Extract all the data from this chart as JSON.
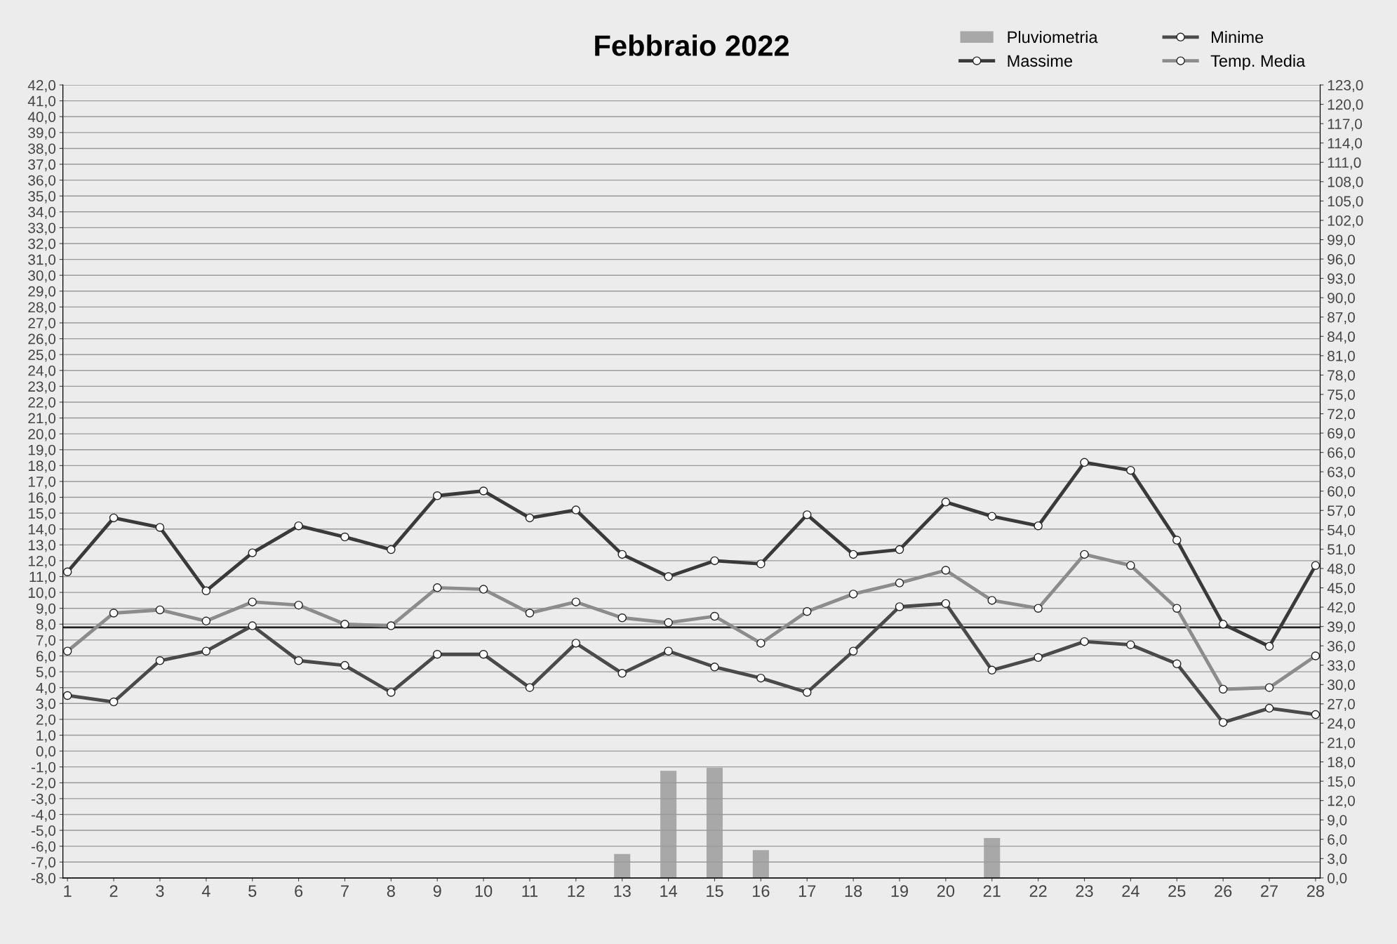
{
  "chart_data": {
    "type": "line",
    "title": "Febbraio 2022",
    "categories": [
      "1",
      "2",
      "3",
      "4",
      "5",
      "6",
      "7",
      "8",
      "9",
      "10",
      "11",
      "12",
      "13",
      "14",
      "15",
      "16",
      "17",
      "18",
      "19",
      "20",
      "21",
      "22",
      "23",
      "24",
      "25",
      "26",
      "27",
      "28"
    ],
    "series": [
      {
        "name": "Pluviometria",
        "type": "bar",
        "axis": "y2",
        "color": "#a8a8a8",
        "values": [
          0,
          0,
          0,
          0,
          0,
          0,
          null,
          0,
          0,
          0,
          0,
          0,
          3.7,
          16.6,
          17.1,
          4.3,
          0,
          0,
          0,
          0,
          6.2,
          0,
          0,
          0,
          0,
          null,
          0,
          0
        ]
      },
      {
        "name": "Massime",
        "color": "#3a3a3a",
        "marker": "circle",
        "values": [
          11.3,
          14.7,
          14.1,
          10.1,
          12.5,
          14.2,
          13.5,
          12.7,
          16.1,
          16.4,
          14.7,
          15.2,
          12.4,
          11.0,
          12.0,
          11.8,
          14.9,
          12.4,
          12.7,
          15.7,
          14.8,
          14.2,
          18.2,
          17.7,
          13.3,
          8.0,
          6.6,
          11.7
        ]
      },
      {
        "name": "Minime",
        "color": "#4a4a4a",
        "marker": "circle",
        "values": [
          3.5,
          3.1,
          5.7,
          6.3,
          7.9,
          5.7,
          5.4,
          3.7,
          6.1,
          6.1,
          4.0,
          6.8,
          4.9,
          6.3,
          5.3,
          4.6,
          3.7,
          6.3,
          9.1,
          9.3,
          5.1,
          5.9,
          6.9,
          6.7,
          5.5,
          1.8,
          2.7,
          2.3
        ]
      },
      {
        "name": "Temp. Media",
        "color": "#8c8c8c",
        "marker": "circle",
        "values": [
          6.3,
          8.7,
          8.9,
          8.2,
          9.4,
          9.2,
          8.0,
          7.9,
          10.3,
          10.2,
          8.7,
          9.4,
          8.4,
          8.1,
          8.5,
          6.8,
          8.8,
          9.9,
          10.6,
          11.4,
          9.5,
          9.0,
          12.4,
          11.7,
          9.0,
          3.9,
          4.0,
          6.0
        ]
      }
    ],
    "ylim": [
      -8,
      42
    ],
    "yticks": [
      {
        "value": -8,
        "label": "-8,0"
      },
      {
        "value": -7,
        "label": "-7,0"
      },
      {
        "value": -6,
        "label": "-6,0"
      },
      {
        "value": -5,
        "label": "-5,0"
      },
      {
        "value": -4,
        "label": "-4,0"
      },
      {
        "value": -3,
        "label": "-3,0"
      },
      {
        "value": -2,
        "label": "-2,0"
      },
      {
        "value": -1,
        "label": "-1,0"
      },
      {
        "value": 0,
        "label": "0,0"
      },
      {
        "value": 1,
        "label": "1,0"
      },
      {
        "value": 2,
        "label": "2,0"
      },
      {
        "value": 3,
        "label": "3,0"
      },
      {
        "value": 4,
        "label": "4,0"
      },
      {
        "value": 5,
        "label": "5,0"
      },
      {
        "value": 6,
        "label": "6,0"
      },
      {
        "value": 7,
        "label": "7,0"
      },
      {
        "value": 8,
        "label": "8,0"
      },
      {
        "value": 9,
        "label": "9,0"
      },
      {
        "value": 10,
        "label": "10,0"
      },
      {
        "value": 11,
        "label": "11,0"
      },
      {
        "value": 12,
        "label": "12,0"
      },
      {
        "value": 13,
        "label": "13,0"
      },
      {
        "value": 14,
        "label": "14,0"
      },
      {
        "value": 15,
        "label": "15,0"
      },
      {
        "value": 16,
        "label": "16,0"
      },
      {
        "value": 17,
        "label": "17,0"
      },
      {
        "value": 18,
        "label": "18,0"
      },
      {
        "value": 19,
        "label": "19,0"
      },
      {
        "value": 20,
        "label": "20,0"
      },
      {
        "value": 21,
        "label": "21,0"
      },
      {
        "value": 22,
        "label": "22,0"
      },
      {
        "value": 23,
        "label": "23,0"
      },
      {
        "value": 24,
        "label": "24,0"
      },
      {
        "value": 25,
        "label": "25,0"
      },
      {
        "value": 26,
        "label": "26,0"
      },
      {
        "value": 27,
        "label": "27,0"
      },
      {
        "value": 28,
        "label": "28,0"
      },
      {
        "value": 29,
        "label": "29,0"
      },
      {
        "value": 30,
        "label": "30,0"
      },
      {
        "value": 31,
        "label": "31,0"
      },
      {
        "value": 32,
        "label": "32,0"
      },
      {
        "value": 33,
        "label": "33,0"
      },
      {
        "value": 34,
        "label": "34,0"
      },
      {
        "value": 35,
        "label": "35,0"
      },
      {
        "value": 36,
        "label": "36,0"
      },
      {
        "value": 37,
        "label": "37,0"
      },
      {
        "value": 38,
        "label": "38,0"
      },
      {
        "value": 39,
        "label": "39,0"
      },
      {
        "value": 40,
        "label": "40,0"
      },
      {
        "value": 41,
        "label": "41,0"
      },
      {
        "value": 42,
        "label": "42,0"
      }
    ],
    "y2lim": [
      0,
      123
    ],
    "y2ticks": [
      {
        "value": 0,
        "label": "0,0"
      },
      {
        "value": 3,
        "label": "3,0"
      },
      {
        "value": 6,
        "label": "6,0"
      },
      {
        "value": 9,
        "label": "9,0"
      },
      {
        "value": 12,
        "label": "12,0"
      },
      {
        "value": 15,
        "label": "15,0"
      },
      {
        "value": 18,
        "label": "18,0"
      },
      {
        "value": 21,
        "label": "21,0"
      },
      {
        "value": 24,
        "label": "24,0"
      },
      {
        "value": 27,
        "label": "27,0"
      },
      {
        "value": 30,
        "label": "30,0"
      },
      {
        "value": 33,
        "label": "33,0"
      },
      {
        "value": 36,
        "label": "36,0"
      },
      {
        "value": 39,
        "label": "39,0"
      },
      {
        "value": 42,
        "label": "42,0"
      },
      {
        "value": 45,
        "label": "45,0"
      },
      {
        "value": 48,
        "label": "48,0"
      },
      {
        "value": 51,
        "label": "51,0"
      },
      {
        "value": 54,
        "label": "54,0"
      },
      {
        "value": 57,
        "label": "57,0"
      },
      {
        "value": 60,
        "label": "60,0"
      },
      {
        "value": 63,
        "label": "63,0"
      },
      {
        "value": 66,
        "label": "66,0"
      },
      {
        "value": 69,
        "label": "69,0"
      },
      {
        "value": 72,
        "label": "72,0"
      },
      {
        "value": 75,
        "label": "75,0"
      },
      {
        "value": 78,
        "label": "78,0"
      },
      {
        "value": 81,
        "label": "81,0"
      },
      {
        "value": 84,
        "label": "84,0"
      },
      {
        "value": 87,
        "label": "87,0"
      },
      {
        "value": 90,
        "label": "90,0"
      },
      {
        "value": 93,
        "label": "93,0"
      },
      {
        "value": 96,
        "label": "96,0"
      },
      {
        "value": 99,
        "label": "99,0"
      },
      {
        "value": 102,
        "label": "102,0"
      },
      {
        "value": 105,
        "label": "105,0"
      },
      {
        "value": 108,
        "label": "108,0"
      },
      {
        "value": 111,
        "label": "111,0"
      },
      {
        "value": 114,
        "label": "114,0"
      },
      {
        "value": 117,
        "label": "117,0"
      },
      {
        "value": 120,
        "label": "120,0"
      },
      {
        "value": 123,
        "label": "123,0"
      }
    ],
    "ref_lines": [
      {
        "axis": "y",
        "value": 7.8,
        "color": "#222222"
      }
    ],
    "grid": "y",
    "legend": "top right",
    "line_style": "solid"
  }
}
